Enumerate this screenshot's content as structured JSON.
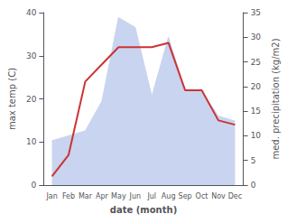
{
  "chart_data": {
    "type": "line",
    "categories": [
      "Jan",
      "Feb",
      "Mar",
      "Apr",
      "May",
      "Jun",
      "Jul",
      "Aug",
      "Sep",
      "Oct",
      "Nov",
      "Dec"
    ],
    "xlabel": "date (month)",
    "ylabel": "max temp (C)",
    "y2label": "med. precipitation (kg/m2)",
    "series": [
      {
        "type": "area",
        "color": "#c8d4f0",
        "axis": "y2",
        "values": [
          9,
          10,
          11,
          17,
          34,
          32,
          18,
          30,
          19,
          19,
          14,
          13
        ]
      },
      {
        "type": "line",
        "color": "#cc3333",
        "values": [
          2,
          7,
          24,
          28,
          32,
          32,
          32,
          33,
          22,
          22,
          15,
          14
        ]
      }
    ],
    "ylim": [
      0,
      40
    ],
    "yticks": [
      0,
      10,
      20,
      30,
      40
    ],
    "y2lim": [
      0,
      35
    ],
    "y2ticks": [
      0,
      5,
      10,
      15,
      20,
      25,
      30,
      35
    ],
    "grid": false
  }
}
